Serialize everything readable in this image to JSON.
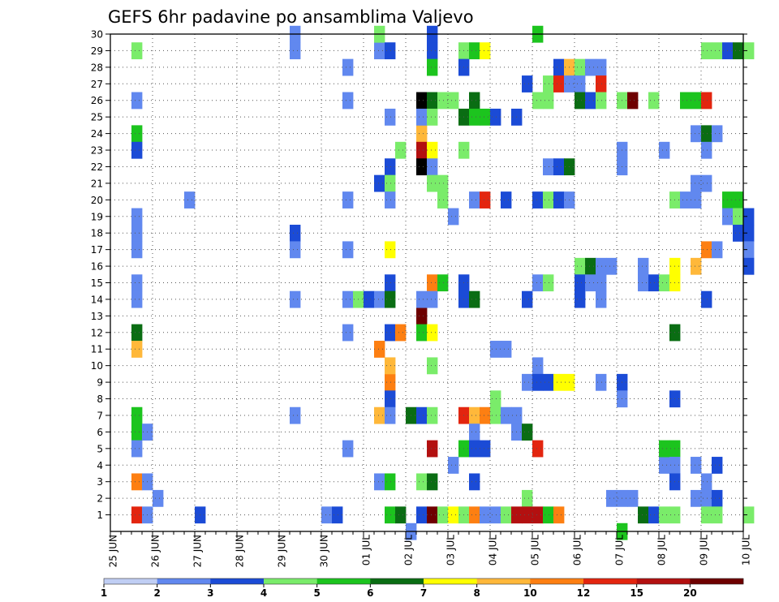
{
  "chart_data": {
    "type": "heatmap",
    "title": "GEFS 6hr padavine po ansamblima Valjevo",
    "xlabel": "",
    "ylabel": "",
    "x_tick_labels": [
      "25 JUN",
      "26 JUN",
      "27 JUN",
      "28 JUN",
      "29 JUN",
      "30 JUN",
      "01 JUL",
      "02 JUL",
      "03 JUL",
      "04 JUL",
      "05 JUL",
      "06 JUL",
      "07 JUL",
      "08 JUL",
      "09 JUL",
      "10 JUL"
    ],
    "y_tick_labels": [
      "1",
      "2",
      "3",
      "4",
      "5",
      "6",
      "7",
      "8",
      "9",
      "10",
      "11",
      "12",
      "13",
      "14",
      "15",
      "16",
      "17",
      "18",
      "19",
      "20",
      "21",
      "22",
      "23",
      "24",
      "25",
      "26",
      "27",
      "28",
      "29",
      "30"
    ],
    "x_unit": "6-hour step from 25 JUN 00Z",
    "y_range": [
      0,
      30
    ],
    "grid": true,
    "legend": {
      "position": "bottom",
      "labels": [
        "1",
        "2",
        "3",
        "4",
        "5",
        "6",
        "7",
        "8",
        "10",
        "12",
        "15",
        "20"
      ],
      "colors": [
        "#c0cef4",
        "#6188ef",
        "#1b4bd6",
        "#7aec6a",
        "#1cc41e",
        "#0a6d13",
        "#ffff00",
        "#ffb83a",
        "#fd7f12",
        "#e3250f",
        "#b31010",
        "#6e0000"
      ]
    },
    "cells": [
      [
        2,
        29,
        3
      ],
      [
        2,
        26,
        1
      ],
      [
        2,
        24,
        4
      ],
      [
        2,
        23,
        2
      ],
      [
        2,
        19,
        1
      ],
      [
        2,
        18,
        1
      ],
      [
        2,
        17,
        1
      ],
      [
        2,
        15,
        1
      ],
      [
        2,
        14,
        1
      ],
      [
        2,
        12,
        5
      ],
      [
        2,
        11,
        7
      ],
      [
        2,
        7,
        4
      ],
      [
        2,
        6,
        4
      ],
      [
        2,
        5,
        1
      ],
      [
        2,
        3,
        8
      ],
      [
        2,
        1,
        9
      ],
      [
        3,
        6,
        1
      ],
      [
        3,
        3,
        1
      ],
      [
        3,
        1,
        1
      ],
      [
        4,
        2,
        1
      ],
      [
        7,
        20,
        1
      ],
      [
        8,
        1,
        2
      ],
      [
        17,
        30,
        1
      ],
      [
        17,
        29,
        1
      ],
      [
        17,
        18,
        2
      ],
      [
        17,
        17,
        1
      ],
      [
        17,
        14,
        1
      ],
      [
        17,
        7,
        1
      ],
      [
        20,
        1,
        1
      ],
      [
        21,
        1,
        2
      ],
      [
        22,
        28,
        1
      ],
      [
        22,
        20,
        1
      ],
      [
        22,
        17,
        1
      ],
      [
        22,
        14,
        1
      ],
      [
        22,
        12,
        1
      ],
      [
        22,
        5,
        1
      ],
      [
        22,
        26,
        1
      ],
      [
        23,
        14,
        3
      ],
      [
        24,
        14,
        2
      ],
      [
        25,
        21,
        2
      ],
      [
        25,
        14,
        1
      ],
      [
        25,
        11,
        8
      ],
      [
        25,
        7,
        7
      ],
      [
        25,
        3,
        1
      ],
      [
        25,
        29,
        1
      ],
      [
        25,
        30,
        3
      ],
      [
        26,
        29,
        2
      ],
      [
        26,
        25,
        1
      ],
      [
        26,
        22,
        2
      ],
      [
        26,
        21,
        3
      ],
      [
        26,
        20,
        1
      ],
      [
        26,
        17,
        6
      ],
      [
        26,
        15,
        2
      ],
      [
        26,
        14,
        5
      ],
      [
        26,
        12,
        2
      ],
      [
        26,
        9,
        8
      ],
      [
        26,
        8,
        2
      ],
      [
        26,
        7,
        1
      ],
      [
        26,
        10,
        7
      ],
      [
        26,
        3,
        4
      ],
      [
        26,
        1,
        4
      ],
      [
        27,
        1,
        5
      ],
      [
        27,
        12,
        8
      ],
      [
        27,
        23,
        3
      ],
      [
        28,
        0,
        1
      ],
      [
        28,
        7,
        5
      ],
      [
        29,
        26,
        12
      ],
      [
        29,
        24,
        7
      ],
      [
        29,
        23,
        10
      ],
      [
        29,
        22,
        12
      ],
      [
        29,
        13,
        11
      ],
      [
        29,
        12,
        4
      ],
      [
        29,
        1,
        2
      ],
      [
        29,
        14,
        1
      ],
      [
        29,
        3,
        3
      ],
      [
        29,
        7,
        2
      ],
      [
        29,
        25,
        1
      ],
      [
        30,
        30,
        2
      ],
      [
        30,
        29,
        2
      ],
      [
        30,
        28,
        4
      ],
      [
        30,
        26,
        5
      ],
      [
        30,
        25,
        3
      ],
      [
        30,
        23,
        6
      ],
      [
        30,
        22,
        1
      ],
      [
        30,
        21,
        3
      ],
      [
        30,
        15,
        8
      ],
      [
        30,
        14,
        1
      ],
      [
        30,
        12,
        6
      ],
      [
        30,
        10,
        3
      ],
      [
        30,
        7,
        3
      ],
      [
        30,
        5,
        10
      ],
      [
        30,
        3,
        5
      ],
      [
        30,
        1,
        11
      ],
      [
        31,
        26,
        3
      ],
      [
        31,
        21,
        3
      ],
      [
        31,
        20,
        3
      ],
      [
        31,
        15,
        4
      ],
      [
        31,
        1,
        3
      ],
      [
        32,
        26,
        3
      ],
      [
        32,
        19,
        1
      ],
      [
        32,
        4,
        1
      ],
      [
        32,
        1,
        6
      ],
      [
        33,
        29,
        3
      ],
      [
        33,
        28,
        2
      ],
      [
        33,
        25,
        5
      ],
      [
        33,
        23,
        3
      ],
      [
        33,
        15,
        2
      ],
      [
        33,
        14,
        2
      ],
      [
        33,
        7,
        9
      ],
      [
        33,
        5,
        4
      ],
      [
        33,
        1,
        3
      ],
      [
        34,
        29,
        4
      ],
      [
        34,
        26,
        5
      ],
      [
        34,
        25,
        4
      ],
      [
        34,
        20,
        1
      ],
      [
        34,
        14,
        5
      ],
      [
        34,
        7,
        7
      ],
      [
        34,
        6,
        1
      ],
      [
        34,
        5,
        2
      ],
      [
        34,
        3,
        2
      ],
      [
        34,
        1,
        8
      ],
      [
        35,
        29,
        6
      ],
      [
        35,
        25,
        4
      ],
      [
        35,
        20,
        9
      ],
      [
        35,
        7,
        8
      ],
      [
        35,
        5,
        2
      ],
      [
        35,
        1,
        1
      ],
      [
        36,
        25,
        2
      ],
      [
        36,
        11,
        1
      ],
      [
        36,
        8,
        3
      ],
      [
        36,
        7,
        3
      ],
      [
        36,
        1,
        1
      ],
      [
        37,
        20,
        2
      ],
      [
        37,
        11,
        1
      ],
      [
        37,
        7,
        1
      ],
      [
        37,
        1,
        3
      ],
      [
        38,
        25,
        2
      ],
      [
        38,
        6,
        1
      ],
      [
        38,
        1,
        10
      ],
      [
        38,
        7,
        1
      ],
      [
        39,
        27,
        2
      ],
      [
        39,
        14,
        2
      ],
      [
        39,
        9,
        1
      ],
      [
        39,
        6,
        5
      ],
      [
        39,
        2,
        3
      ],
      [
        39,
        1,
        10
      ],
      [
        40,
        30,
        4
      ],
      [
        40,
        26,
        3
      ],
      [
        40,
        20,
        2
      ],
      [
        40,
        15,
        1
      ],
      [
        40,
        10,
        1
      ],
      [
        40,
        9,
        2
      ],
      [
        40,
        5,
        9
      ],
      [
        40,
        1,
        10
      ],
      [
        41,
        27,
        3
      ],
      [
        41,
        26,
        3
      ],
      [
        41,
        22,
        1
      ],
      [
        41,
        20,
        3
      ],
      [
        41,
        15,
        3
      ],
      [
        41,
        9,
        2
      ],
      [
        41,
        1,
        4
      ],
      [
        42,
        28,
        2
      ],
      [
        42,
        27,
        9
      ],
      [
        42,
        22,
        2
      ],
      [
        42,
        20,
        2
      ],
      [
        42,
        9,
        6
      ],
      [
        42,
        1,
        8
      ],
      [
        43,
        28,
        7
      ],
      [
        43,
        27,
        1
      ],
      [
        43,
        22,
        5
      ],
      [
        43,
        20,
        1
      ],
      [
        43,
        9,
        6
      ],
      [
        44,
        28,
        3
      ],
      [
        44,
        27,
        1
      ],
      [
        44,
        26,
        5
      ],
      [
        44,
        16,
        3
      ],
      [
        44,
        15,
        2
      ],
      [
        44,
        14,
        2
      ],
      [
        45,
        28,
        1
      ],
      [
        45,
        26,
        2
      ],
      [
        45,
        16,
        5
      ],
      [
        45,
        15,
        1
      ],
      [
        46,
        28,
        1
      ],
      [
        46,
        27,
        9
      ],
      [
        46,
        26,
        3
      ],
      [
        46,
        16,
        1
      ],
      [
        46,
        15,
        1
      ],
      [
        46,
        14,
        1
      ],
      [
        46,
        9,
        1
      ],
      [
        47,
        16,
        1
      ],
      [
        47,
        2,
        1
      ],
      [
        48,
        26,
        3
      ],
      [
        48,
        23,
        1
      ],
      [
        48,
        22,
        1
      ],
      [
        48,
        9,
        2
      ],
      [
        48,
        8,
        1
      ],
      [
        48,
        2,
        1
      ],
      [
        48,
        0,
        4
      ],
      [
        49,
        26,
        11
      ],
      [
        49,
        2,
        1
      ],
      [
        50,
        1,
        5
      ],
      [
        50,
        16,
        1
      ],
      [
        50,
        15,
        1
      ],
      [
        51,
        26,
        3
      ],
      [
        51,
        15,
        2
      ],
      [
        51,
        1,
        2
      ],
      [
        52,
        23,
        1
      ],
      [
        52,
        15,
        3
      ],
      [
        52,
        4,
        1
      ],
      [
        52,
        5,
        4
      ],
      [
        52,
        1,
        3
      ],
      [
        53,
        20,
        3
      ],
      [
        53,
        16,
        6
      ],
      [
        53,
        15,
        6
      ],
      [
        53,
        12,
        5
      ],
      [
        53,
        8,
        2
      ],
      [
        53,
        5,
        4
      ],
      [
        53,
        4,
        1
      ],
      [
        53,
        3,
        2
      ],
      [
        53,
        1,
        3
      ],
      [
        54,
        26,
        4
      ],
      [
        54,
        20,
        1
      ],
      [
        55,
        26,
        4
      ],
      [
        55,
        24,
        1
      ],
      [
        55,
        21,
        1
      ],
      [
        55,
        20,
        1
      ],
      [
        55,
        16,
        7
      ],
      [
        55,
        4,
        1
      ],
      [
        55,
        2,
        1
      ],
      [
        56,
        29,
        3
      ],
      [
        56,
        26,
        9
      ],
      [
        56,
        24,
        5
      ],
      [
        56,
        23,
        1
      ],
      [
        56,
        21,
        1
      ],
      [
        56,
        17,
        8
      ],
      [
        56,
        14,
        2
      ],
      [
        56,
        3,
        1
      ],
      [
        56,
        2,
        1
      ],
      [
        56,
        1,
        3
      ],
      [
        57,
        29,
        3
      ],
      [
        57,
        24,
        1
      ],
      [
        57,
        17,
        1
      ],
      [
        57,
        4,
        2
      ],
      [
        57,
        2,
        2
      ],
      [
        57,
        1,
        3
      ],
      [
        58,
        29,
        2
      ],
      [
        58,
        20,
        4
      ],
      [
        58,
        19,
        1
      ],
      [
        59,
        29,
        5
      ],
      [
        59,
        20,
        4
      ],
      [
        59,
        19,
        3
      ],
      [
        59,
        18,
        2
      ],
      [
        60,
        29,
        3
      ],
      [
        60,
        19,
        2
      ],
      [
        60,
        18,
        2
      ],
      [
        60,
        17,
        1
      ],
      [
        60,
        16,
        2
      ],
      [
        60,
        1,
        3
      ]
    ]
  }
}
